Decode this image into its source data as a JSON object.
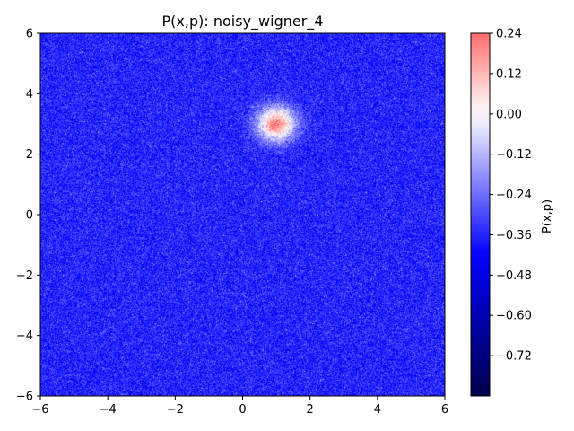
{
  "chart_data": {
    "type": "heatmap",
    "title": "P(x,p): noisy_wigner_4",
    "xlabel": "",
    "ylabel": "",
    "xlim": [
      -6,
      6
    ],
    "ylim": [
      -6,
      6
    ],
    "x_ticks": [
      "−6",
      "−4",
      "−2",
      "0",
      "2",
      "4",
      "6"
    ],
    "y_ticks": [
      "−6",
      "−4",
      "−2",
      "0",
      "2",
      "4",
      "6"
    ],
    "x_tick_values": [
      -6,
      -4,
      -2,
      0,
      2,
      4,
      6
    ],
    "y_tick_values": [
      -6,
      -4,
      -2,
      0,
      2,
      4,
      6
    ],
    "grid": false,
    "features": [
      {
        "type": "gaussian_peak",
        "center_x": 1.0,
        "center_p": 3.0,
        "sigma": 0.4,
        "peak_value": 0.2
      }
    ],
    "background_value": -0.36,
    "noise_amplitude": 0.06,
    "colorbar": {
      "label": "P(x,p)",
      "colormap": "seismic",
      "vmin": -0.84,
      "vmax": 0.24,
      "ticks": [
        "0.24",
        "0.12",
        "0.00",
        "−0.12",
        "−0.24",
        "−0.36",
        "−0.48",
        "−0.60",
        "−0.72"
      ],
      "tick_values": [
        0.24,
        0.12,
        0.0,
        -0.12,
        -0.24,
        -0.36,
        -0.48,
        -0.6,
        -0.72
      ]
    }
  }
}
